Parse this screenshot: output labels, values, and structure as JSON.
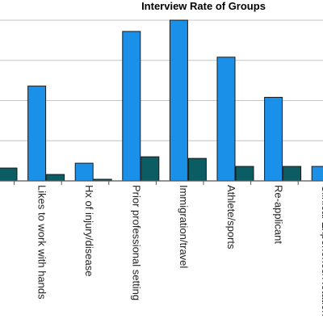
{
  "chart_data": {
    "type": "bar",
    "title": "Interview Rate of Groups",
    "xlabel": "",
    "ylabel": "",
    "grid": true,
    "ylim": [
      0,
      100
    ],
    "categories": [
      "",
      "Likes to work with hands",
      "Hx of injury/disease",
      "Prior professional setting",
      "Immigration/travel",
      "Athlete/sports",
      "Re-applicant",
      "Clinical Experience/Rotation"
    ],
    "series": [
      {
        "values": [
          null,
          59,
          11,
          93,
          100,
          77,
          52,
          9
        ]
      },
      {
        "values": [
          8,
          4,
          1,
          15,
          14,
          9,
          9,
          3
        ]
      }
    ]
  },
  "colors": {
    "series_1": "#1b90e8",
    "series_2": "#0b5c63",
    "grid": "#c4c4c4",
    "axis": "#555555",
    "bar_outline": "#1a1a1a"
  }
}
